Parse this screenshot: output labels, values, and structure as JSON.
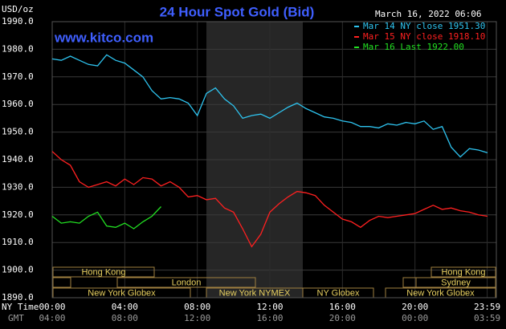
{
  "chart_data": {
    "type": "line",
    "title": "24 Hour Spot Gold (Bid)",
    "unit_label": "USD/oz",
    "timestamp": "March 16, 2022 06:06",
    "watermark": "www.kitco.com",
    "xlim": [
      0,
      24
    ],
    "ylim": [
      1890,
      1990
    ],
    "yticks": [
      {
        "value": 1890,
        "label": "1890.0"
      },
      {
        "value": 1900,
        "label": "1900.0"
      },
      {
        "value": 1910,
        "label": "1910.0"
      },
      {
        "value": 1920,
        "label": "1920.0"
      },
      {
        "value": 1930,
        "label": "1930.0"
      },
      {
        "value": 1940,
        "label": "1940.0"
      },
      {
        "value": 1950,
        "label": "1950.0"
      },
      {
        "value": 1960,
        "label": "1960.0"
      },
      {
        "value": 1970,
        "label": "1970.0"
      },
      {
        "value": 1980,
        "label": "1980.0"
      },
      {
        "value": 1990,
        "label": "1990.0"
      }
    ],
    "xticks_row_label": "NY Time",
    "xticks": [
      {
        "value": 0,
        "label": "00:00"
      },
      {
        "value": 4,
        "label": "04:00"
      },
      {
        "value": 8,
        "label": "08:00"
      },
      {
        "value": 12,
        "label": "12:00"
      },
      {
        "value": 16,
        "label": "16:00"
      },
      {
        "value": 20,
        "label": "20:00"
      },
      {
        "value": 23.98,
        "label": "23:59"
      }
    ],
    "xticks2_row_label": "GMT",
    "xticks2": [
      {
        "value": 0,
        "label": "04:00"
      },
      {
        "value": 4,
        "label": "08:00"
      },
      {
        "value": 8,
        "label": "12:00"
      },
      {
        "value": 12,
        "label": "16:00"
      },
      {
        "value": 16,
        "label": "20:00"
      },
      {
        "value": 20,
        "label": "00:00"
      },
      {
        "value": 23.98,
        "label": "03:59"
      }
    ],
    "grid": true,
    "legend": "top-right",
    "sessions": [
      "Hong Kong",
      "London",
      "New York Globex",
      "New York NYMEX",
      "NY Globex",
      "Hong Kong",
      "Sydney",
      "New York Globex"
    ],
    "x": [
      0,
      0.5,
      1,
      1.5,
      2,
      2.5,
      3,
      3.5,
      4,
      4.5,
      5,
      5.5,
      6,
      6.5,
      7,
      7.5,
      8,
      8.5,
      9,
      9.5,
      10,
      10.5,
      11,
      11.5,
      12,
      12.5,
      13,
      13.5,
      14,
      14.5,
      15,
      15.5,
      16,
      16.5,
      17,
      17.5,
      18,
      18.5,
      19,
      19.5,
      20,
      20.5,
      21,
      21.5,
      22,
      22.5,
      23,
      23.5,
      24
    ],
    "series": [
      {
        "name": "Mar 14 NY close 1951.30",
        "color": "#2ec4f0",
        "values": [
          1976.5,
          1976,
          1977.5,
          1976,
          1974.5,
          1974,
          1978,
          1976,
          1975,
          1972.5,
          1970,
          1965,
          1962,
          1962.5,
          1962,
          1960.5,
          1956,
          1964,
          1966,
          1962,
          1959.5,
          1955,
          1956,
          1956.5,
          1955,
          1957,
          1959,
          1960.5,
          1958.5,
          1957,
          1955.5,
          1955,
          1954,
          1953.5,
          1952,
          1952,
          1951.5,
          1953,
          1952.5,
          1953.5,
          1953,
          1954,
          1951,
          1952,
          1944.5,
          1941,
          1944,
          1943.5,
          1942.5
        ]
      },
      {
        "name": "Mar 15 NY close 1918.10",
        "color": "#ff2020",
        "values": [
          1943,
          1940,
          1938,
          1932,
          1930,
          1931,
          1932,
          1930.5,
          1933,
          1931,
          1933.5,
          1933,
          1930.5,
          1932,
          1930,
          1926.5,
          1927,
          1925.5,
          1926,
          1922.5,
          1921,
          1915,
          1908.5,
          1913,
          1921,
          1924,
          1926.5,
          1928.5,
          1928,
          1927,
          1923.5,
          1921,
          1918.5,
          1917.5,
          1915.5,
          1918,
          1919.5,
          1919,
          1919.5,
          1920,
          1920.5,
          1922,
          1923.5,
          1922,
          1922.5,
          1921.5,
          1921,
          1920,
          1919.5
        ]
      },
      {
        "name": "Mar 16 Last 1922.00",
        "color": "#22e022",
        "values": [
          1919.5,
          1917,
          1917.5,
          1917,
          1919.5,
          1921,
          1916,
          1915.5,
          1917,
          1915,
          1917.5,
          1919.5,
          1923,
          null,
          null,
          null,
          null,
          null,
          null,
          null,
          null,
          null,
          null,
          null,
          null,
          null,
          null,
          null,
          null,
          null,
          null,
          null,
          null,
          null,
          null,
          null,
          null,
          null,
          null,
          null,
          null,
          null,
          null,
          null,
          null,
          null,
          null,
          null,
          null
        ]
      }
    ]
  }
}
